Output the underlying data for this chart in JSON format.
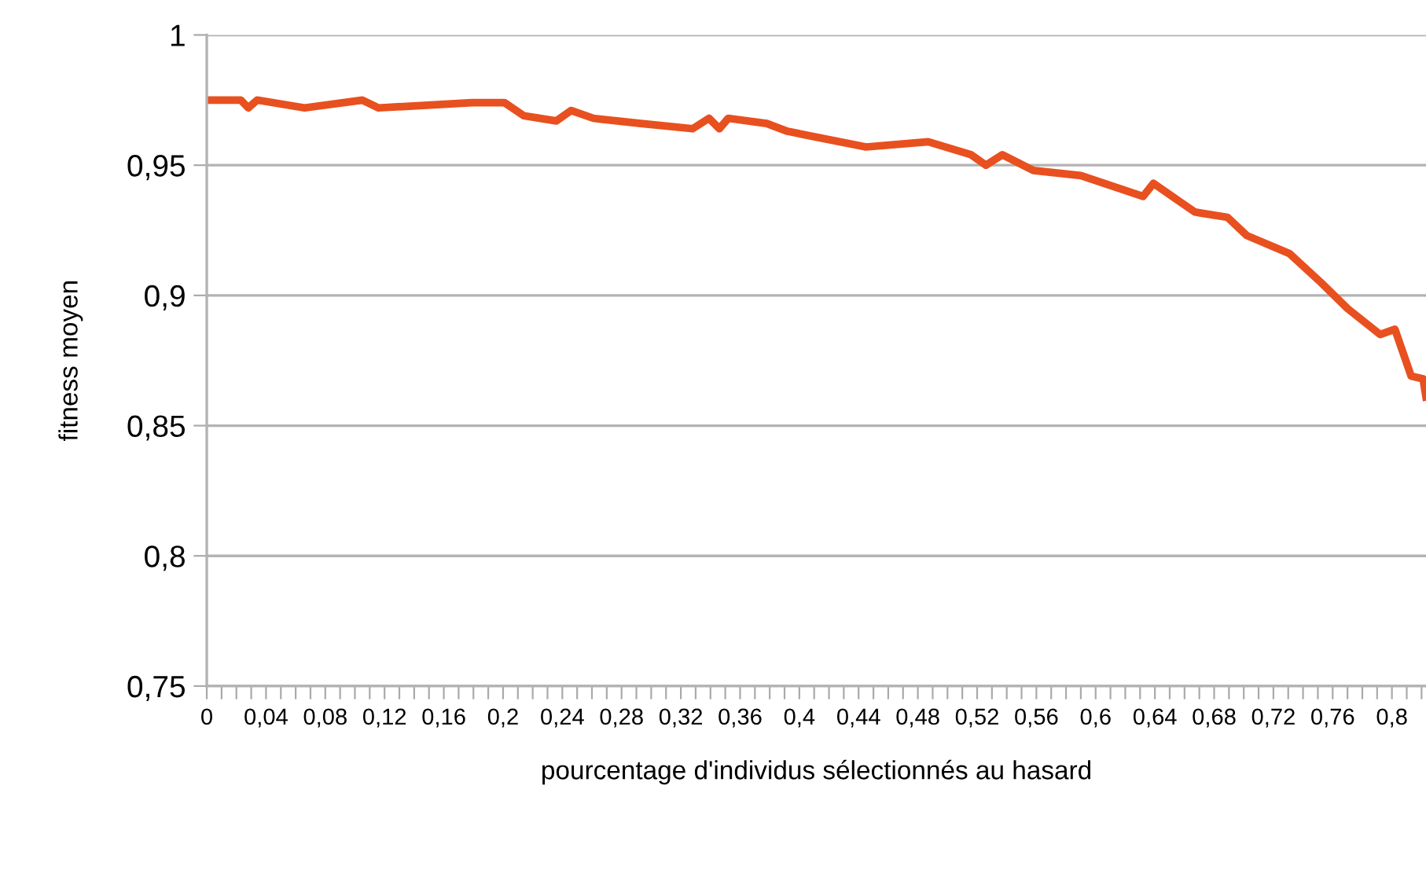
{
  "chart_data": {
    "type": "line",
    "xlabel": "pourcentage d'individus sélectionnés au hasard",
    "ylabel": "fitness moyen",
    "xlim": [
      0,
      0.823
    ],
    "ylim": [
      0.75,
      1
    ],
    "yticks": [
      {
        "value": 0.75,
        "label": "0,75"
      },
      {
        "value": 0.8,
        "label": "0,8"
      },
      {
        "value": 0.85,
        "label": "0,85"
      },
      {
        "value": 0.9,
        "label": "0,9"
      },
      {
        "value": 0.95,
        "label": "0,95"
      },
      {
        "value": 1,
        "label": "1"
      }
    ],
    "xticks": [
      {
        "value": 0,
        "label": "0"
      },
      {
        "value": 0.01,
        "label": null
      },
      {
        "value": 0.02,
        "label": null
      },
      {
        "value": 0.03,
        "label": null
      },
      {
        "value": 0.04,
        "label": "0,04"
      },
      {
        "value": 0.05,
        "label": null
      },
      {
        "value": 0.06,
        "label": null
      },
      {
        "value": 0.07,
        "label": null
      },
      {
        "value": 0.08,
        "label": "0,08"
      },
      {
        "value": 0.09,
        "label": null
      },
      {
        "value": 0.1,
        "label": null
      },
      {
        "value": 0.11,
        "label": null
      },
      {
        "value": 0.12,
        "label": "0,12"
      },
      {
        "value": 0.13,
        "label": null
      },
      {
        "value": 0.14,
        "label": null
      },
      {
        "value": 0.15,
        "label": null
      },
      {
        "value": 0.16,
        "label": "0,16"
      },
      {
        "value": 0.17,
        "label": null
      },
      {
        "value": 0.18,
        "label": null
      },
      {
        "value": 0.19,
        "label": null
      },
      {
        "value": 0.2,
        "label": "0,2"
      },
      {
        "value": 0.21,
        "label": null
      },
      {
        "value": 0.22,
        "label": null
      },
      {
        "value": 0.23,
        "label": null
      },
      {
        "value": 0.24,
        "label": "0,24"
      },
      {
        "value": 0.25,
        "label": null
      },
      {
        "value": 0.26,
        "label": null
      },
      {
        "value": 0.27,
        "label": null
      },
      {
        "value": 0.28,
        "label": "0,28"
      },
      {
        "value": 0.29,
        "label": null
      },
      {
        "value": 0.3,
        "label": null
      },
      {
        "value": 0.31,
        "label": null
      },
      {
        "value": 0.32,
        "label": "0,32"
      },
      {
        "value": 0.33,
        "label": null
      },
      {
        "value": 0.34,
        "label": null
      },
      {
        "value": 0.35,
        "label": null
      },
      {
        "value": 0.36,
        "label": "0,36"
      },
      {
        "value": 0.37,
        "label": null
      },
      {
        "value": 0.38,
        "label": null
      },
      {
        "value": 0.39,
        "label": null
      },
      {
        "value": 0.4,
        "label": "0,4"
      },
      {
        "value": 0.41,
        "label": null
      },
      {
        "value": 0.42,
        "label": null
      },
      {
        "value": 0.43,
        "label": null
      },
      {
        "value": 0.44,
        "label": "0,44"
      },
      {
        "value": 0.45,
        "label": null
      },
      {
        "value": 0.46,
        "label": null
      },
      {
        "value": 0.47,
        "label": null
      },
      {
        "value": 0.48,
        "label": "0,48"
      },
      {
        "value": 0.49,
        "label": null
      },
      {
        "value": 0.5,
        "label": null
      },
      {
        "value": 0.51,
        "label": null
      },
      {
        "value": 0.52,
        "label": "0,52"
      },
      {
        "value": 0.53,
        "label": null
      },
      {
        "value": 0.54,
        "label": null
      },
      {
        "value": 0.55,
        "label": null
      },
      {
        "value": 0.56,
        "label": "0,56"
      },
      {
        "value": 0.57,
        "label": null
      },
      {
        "value": 0.58,
        "label": null
      },
      {
        "value": 0.59,
        "label": null
      },
      {
        "value": 0.6,
        "label": "0,6"
      },
      {
        "value": 0.61,
        "label": null
      },
      {
        "value": 0.62,
        "label": null
      },
      {
        "value": 0.63,
        "label": null
      },
      {
        "value": 0.64,
        "label": "0,64"
      },
      {
        "value": 0.65,
        "label": null
      },
      {
        "value": 0.66,
        "label": null
      },
      {
        "value": 0.67,
        "label": null
      },
      {
        "value": 0.68,
        "label": "0,68"
      },
      {
        "value": 0.69,
        "label": null
      },
      {
        "value": 0.7,
        "label": null
      },
      {
        "value": 0.71,
        "label": null
      },
      {
        "value": 0.72,
        "label": "0,72"
      },
      {
        "value": 0.73,
        "label": null
      },
      {
        "value": 0.74,
        "label": null
      },
      {
        "value": 0.75,
        "label": null
      },
      {
        "value": 0.76,
        "label": "0,76"
      },
      {
        "value": 0.77,
        "label": null
      },
      {
        "value": 0.78,
        "label": null
      },
      {
        "value": 0.79,
        "label": null
      },
      {
        "value": 0.8,
        "label": "0,8"
      },
      {
        "value": 0.81,
        "label": null
      },
      {
        "value": 0.82,
        "label": null
      }
    ],
    "grid": "y",
    "legend": false,
    "marker": "none",
    "line_style": "solid",
    "series": [
      {
        "color": "#e8501f",
        "x": [
          0,
          0.023,
          0.028,
          0.034,
          0.066,
          0.105,
          0.116,
          0.179,
          0.201,
          0.214,
          0.236,
          0.246,
          0.261,
          0.293,
          0.328,
          0.339,
          0.346,
          0.352,
          0.378,
          0.392,
          0.445,
          0.487,
          0.516,
          0.526,
          0.537,
          0.558,
          0.59,
          0.632,
          0.639,
          0.667,
          0.689,
          0.702,
          0.731,
          0.752,
          0.77,
          0.792,
          0.802,
          0.813,
          0.821,
          0.823
        ],
        "values": [
          0.975,
          0.975,
          0.972,
          0.975,
          0.972,
          0.975,
          0.972,
          0.974,
          0.974,
          0.969,
          0.967,
          0.971,
          0.968,
          0.966,
          0.964,
          0.968,
          0.964,
          0.968,
          0.966,
          0.963,
          0.957,
          0.959,
          0.954,
          0.95,
          0.954,
          0.948,
          0.946,
          0.938,
          0.943,
          0.932,
          0.93,
          0.923,
          0.916,
          0.905,
          0.895,
          0.885,
          0.887,
          0.869,
          0.868,
          0.861
        ]
      }
    ]
  }
}
